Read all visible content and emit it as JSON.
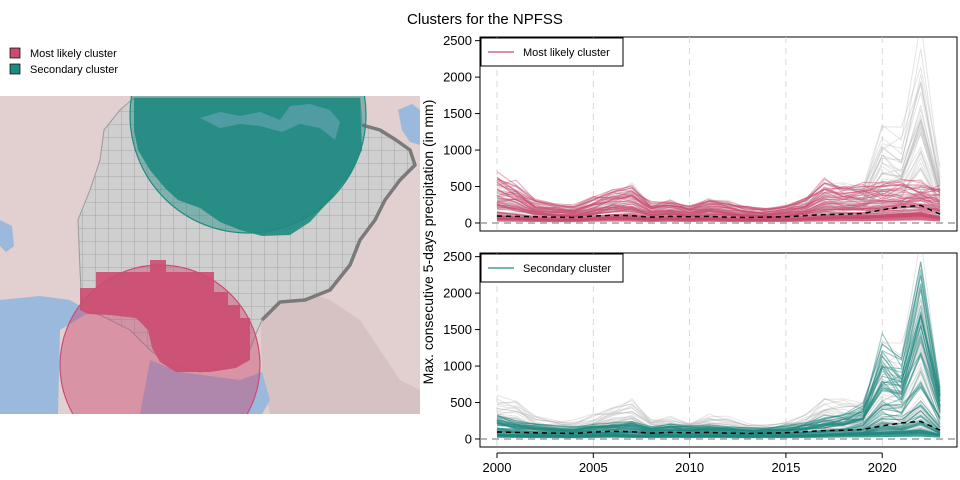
{
  "title": "Clusters for the NPFSS",
  "colors": {
    "most_likely": "#cc4c71",
    "secondary": "#1f8a80",
    "background_lines": "#b3b3b3",
    "median_line": "#000000",
    "land": "#e2cfcf",
    "water": "#9ab9dc",
    "grid_fill": "#cfcfcf",
    "grid_line": "#9a9a9a",
    "border": "#7a7a7a"
  },
  "map": {
    "legend": [
      {
        "label": "Most likely cluster",
        "color": "#cc4c71"
      },
      {
        "label": "Secondary cluster",
        "color": "#1f8a80"
      }
    ]
  },
  "chart_data": {
    "type": "line",
    "title": "Clusters for the NPFSS",
    "ylabel": "Max. consecutive 5-days precipitation (in mm)",
    "xlabel": "",
    "xlim": [
      2000,
      2023
    ],
    "ylim": [
      0,
      2500
    ],
    "x_ticks": [
      2000,
      2005,
      2010,
      2015,
      2020
    ],
    "y_ticks": [
      0,
      500,
      1000,
      1500,
      2000,
      2500
    ],
    "vertical_gridlines": [
      2000,
      2005,
      2010,
      2015,
      2020
    ],
    "reference_line": 0,
    "x": [
      2000,
      2001,
      2002,
      2003,
      2004,
      2005,
      2006,
      2007,
      2008,
      2009,
      2010,
      2011,
      2012,
      2013,
      2014,
      2015,
      2016,
      2017,
      2018,
      2019,
      2020,
      2021,
      2022,
      2023
    ],
    "panels": [
      {
        "legend": "Most likely cluster",
        "color": "#cc4c71",
        "median": [
          95,
          90,
          85,
          80,
          75,
          95,
          105,
          100,
          80,
          90,
          85,
          90,
          80,
          75,
          80,
          85,
          100,
          115,
          120,
          130,
          180,
          220,
          240,
          120
        ],
        "upper_envelope": [
          600,
          500,
          300,
          250,
          220,
          320,
          420,
          480,
          260,
          280,
          220,
          300,
          260,
          200,
          180,
          220,
          300,
          550,
          470,
          500,
          500,
          520,
          520,
          450
        ],
        "lower_envelope": [
          50,
          40,
          35,
          30,
          30,
          40,
          50,
          45,
          35,
          40,
          35,
          40,
          35,
          30,
          35,
          35,
          40,
          50,
          60,
          60,
          70,
          80,
          90,
          50
        ]
      },
      {
        "legend": "Secondary cluster",
        "color": "#1f8a80",
        "median": [
          95,
          90,
          85,
          80,
          75,
          95,
          105,
          100,
          80,
          90,
          85,
          90,
          80,
          75,
          80,
          85,
          100,
          115,
          120,
          130,
          180,
          220,
          240,
          120
        ],
        "upper_envelope": [
          320,
          250,
          200,
          180,
          160,
          200,
          220,
          240,
          170,
          200,
          180,
          190,
          170,
          150,
          150,
          180,
          220,
          280,
          320,
          450,
          1300,
          1100,
          2430,
          700
        ],
        "lower_envelope": [
          40,
          35,
          30,
          30,
          25,
          35,
          40,
          35,
          30,
          35,
          30,
          35,
          30,
          25,
          30,
          30,
          35,
          40,
          50,
          55,
          65,
          70,
          80,
          45
        ]
      }
    ],
    "background_upper_envelope": [
      580,
      500,
      300,
      250,
      220,
      320,
      420,
      480,
      260,
      280,
      220,
      300,
      260,
      200,
      180,
      220,
      300,
      550,
      480,
      500,
      1300,
      1100,
      2430,
      700
    ]
  }
}
